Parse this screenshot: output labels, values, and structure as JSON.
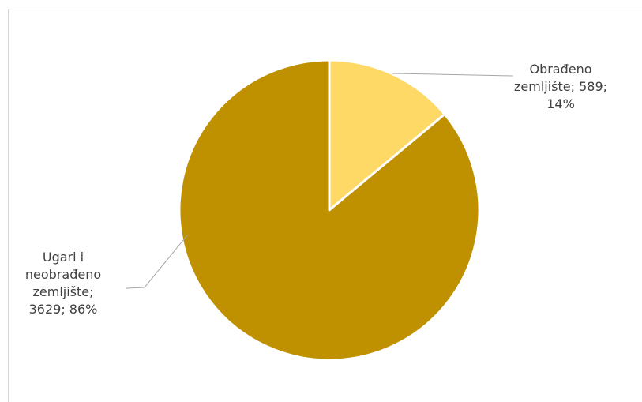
{
  "chart_data": {
    "type": "pie",
    "title": "",
    "slices": [
      {
        "name": "Obrađeno zemljište",
        "value": 589,
        "percent": "14%",
        "color": "#ffd966",
        "label_lines": [
          "Obrađeno",
          "zemljište; 589;",
          "14%"
        ]
      },
      {
        "name": "Ugari i neobrađeno zemljište",
        "value": 3629,
        "percent": "86%",
        "color": "#bf9000",
        "label_lines": [
          "Ugari i",
          "neobrađeno",
          "zemljište;",
          "3629; 86%"
        ]
      }
    ],
    "legend": "none",
    "data_labels": "outside with leader lines"
  }
}
